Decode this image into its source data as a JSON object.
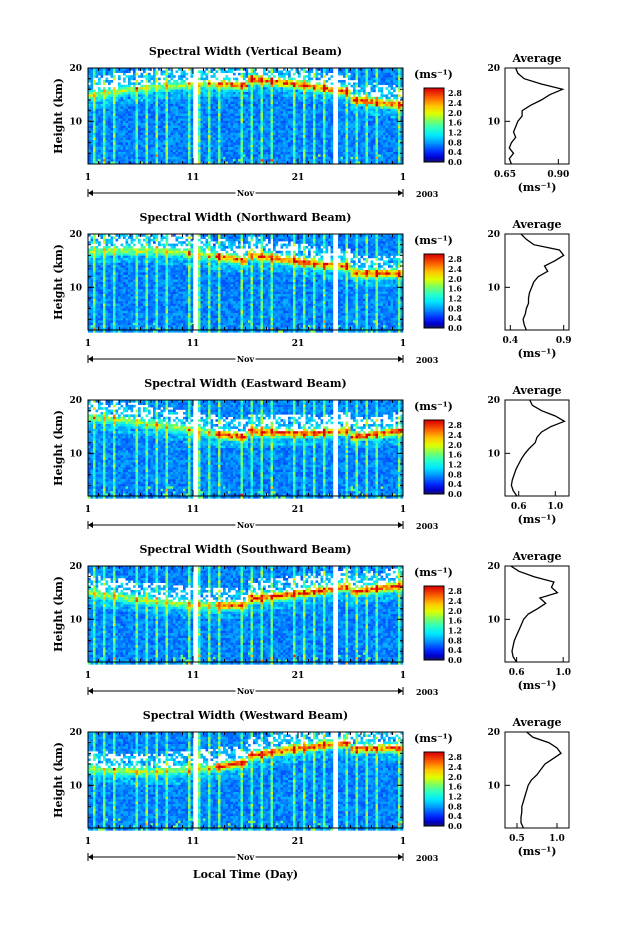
{
  "figure": {
    "xlabel": "Local Time (Day)",
    "month_label": "Nov",
    "year_label": "2003",
    "ylabel": "Height (km)",
    "colorbar_unit": "(ms⁻¹)",
    "colorbar_ticks": [
      "0.0",
      "0.4",
      "0.8",
      "1.2",
      "1.6",
      "2.0",
      "2.4",
      "2.8"
    ],
    "average_title": "Average",
    "average_unit": "(ms⁻¹)"
  },
  "chart_data": [
    {
      "type": "heatmap",
      "title": "Spectral Width (Vertical Beam)",
      "x_ticks": [
        "1",
        "11",
        "21",
        "1"
      ],
      "y_ticks": [
        "10",
        "20"
      ],
      "ylim": [
        2,
        20
      ],
      "clim": [
        0.0,
        2.8
      ],
      "data_gaps_day": [
        [
          11.0,
          11.3
        ],
        [
          24.2,
          24.6
        ]
      ],
      "average": {
        "title": "Average",
        "x_ticks": [
          "0.65",
          "0.90"
        ],
        "xlim": [
          0.65,
          0.95
        ],
        "y_ticks": [
          "10",
          "20"
        ],
        "ylim": [
          2,
          20
        ],
        "height_km": [
          2,
          3,
          4,
          5,
          6,
          7,
          8,
          9,
          10,
          11,
          12,
          13,
          14,
          15,
          16,
          17,
          18,
          19,
          20
        ],
        "value": [
          0.68,
          0.67,
          0.69,
          0.67,
          0.68,
          0.7,
          0.69,
          0.7,
          0.71,
          0.73,
          0.73,
          0.77,
          0.82,
          0.86,
          0.92,
          0.82,
          0.74,
          0.71,
          0.7
        ]
      }
    },
    {
      "type": "heatmap",
      "title": "Spectral Width (Northward Beam)",
      "x_ticks": [
        "1",
        "11",
        "21",
        "1"
      ],
      "y_ticks": [
        "10",
        "20"
      ],
      "ylim": [
        2,
        20
      ],
      "clim": [
        0.0,
        2.8
      ],
      "data_gaps_day": [
        [
          11.0,
          11.3
        ],
        [
          24.2,
          24.6
        ]
      ],
      "average": {
        "title": "Average",
        "x_ticks": [
          "0.4",
          "0.9"
        ],
        "xlim": [
          0.35,
          0.95
        ],
        "y_ticks": [
          "10",
          "20"
        ],
        "ylim": [
          2,
          20
        ],
        "height_km": [
          2,
          3,
          4,
          5,
          6,
          7,
          8,
          9,
          10,
          11,
          12,
          13,
          14,
          15,
          16,
          17,
          18,
          19,
          20
        ],
        "value": [
          0.55,
          0.53,
          0.52,
          0.54,
          0.55,
          0.57,
          0.57,
          0.58,
          0.6,
          0.62,
          0.66,
          0.75,
          0.72,
          0.82,
          0.9,
          0.86,
          0.62,
          0.55,
          0.5
        ]
      }
    },
    {
      "type": "heatmap",
      "title": "Spectral Width (Eastward Beam)",
      "x_ticks": [
        "1",
        "11",
        "21",
        "1"
      ],
      "y_ticks": [
        "10",
        "20"
      ],
      "ylim": [
        2,
        20
      ],
      "clim": [
        0.0,
        2.8
      ],
      "data_gaps_day": [
        [
          11.0,
          11.3
        ],
        [
          24.2,
          24.6
        ]
      ],
      "average": {
        "title": "Average",
        "x_ticks": [
          "0.6",
          "1.0"
        ],
        "xlim": [
          0.45,
          1.15
        ],
        "y_ticks": [
          "10",
          "20"
        ],
        "ylim": [
          2,
          20
        ],
        "height_km": [
          2,
          3,
          4,
          5,
          6,
          7,
          8,
          9,
          10,
          11,
          12,
          13,
          14,
          15,
          16,
          17,
          18,
          19,
          20
        ],
        "value": [
          0.58,
          0.54,
          0.52,
          0.53,
          0.55,
          0.57,
          0.6,
          0.63,
          0.67,
          0.72,
          0.78,
          0.8,
          0.85,
          0.95,
          1.1,
          1.0,
          0.85,
          0.75,
          0.72
        ]
      }
    },
    {
      "type": "heatmap",
      "title": "Spectral Width (Southward Beam)",
      "x_ticks": [
        "1",
        "11",
        "21",
        "1"
      ],
      "y_ticks": [
        "10",
        "20"
      ],
      "ylim": [
        2,
        20
      ],
      "clim": [
        0.0,
        2.8
      ],
      "data_gaps_day": [
        [
          11.0,
          11.3
        ],
        [
          24.2,
          24.6
        ]
      ],
      "average": {
        "title": "Average",
        "x_ticks": [
          "0.6",
          "1.0"
        ],
        "xlim": [
          0.5,
          1.05
        ],
        "y_ticks": [
          "10",
          "20"
        ],
        "ylim": [
          2,
          20
        ],
        "height_km": [
          2,
          3,
          4,
          5,
          6,
          7,
          8,
          9,
          10,
          11,
          12,
          13,
          14,
          15,
          16,
          17,
          18,
          19,
          20
        ],
        "value": [
          0.6,
          0.57,
          0.56,
          0.57,
          0.58,
          0.6,
          0.62,
          0.64,
          0.66,
          0.7,
          0.78,
          0.85,
          0.8,
          0.95,
          0.9,
          0.92,
          0.75,
          0.62,
          0.55
        ]
      }
    },
    {
      "type": "heatmap",
      "title": "Spectral Width (Westward Beam)",
      "x_ticks": [
        "1",
        "11",
        "21",
        "1"
      ],
      "y_ticks": [
        "10",
        "20"
      ],
      "ylim": [
        2,
        20
      ],
      "clim": [
        0.0,
        2.8
      ],
      "data_gaps_day": [
        [
          11.0,
          11.3
        ],
        [
          24.2,
          24.6
        ]
      ],
      "average": {
        "title": "Average",
        "x_ticks": [
          "0.5",
          "1.0"
        ],
        "xlim": [
          0.35,
          1.15
        ],
        "y_ticks": [
          "10",
          "20"
        ],
        "ylim": [
          2,
          20
        ],
        "height_km": [
          2,
          3,
          4,
          5,
          6,
          7,
          8,
          9,
          10,
          11,
          12,
          13,
          14,
          15,
          16,
          17,
          18,
          19,
          20
        ],
        "value": [
          0.58,
          0.55,
          0.55,
          0.56,
          0.56,
          0.58,
          0.6,
          0.62,
          0.64,
          0.68,
          0.75,
          0.8,
          0.85,
          0.95,
          1.05,
          1.0,
          0.9,
          0.7,
          0.62
        ]
      }
    }
  ]
}
